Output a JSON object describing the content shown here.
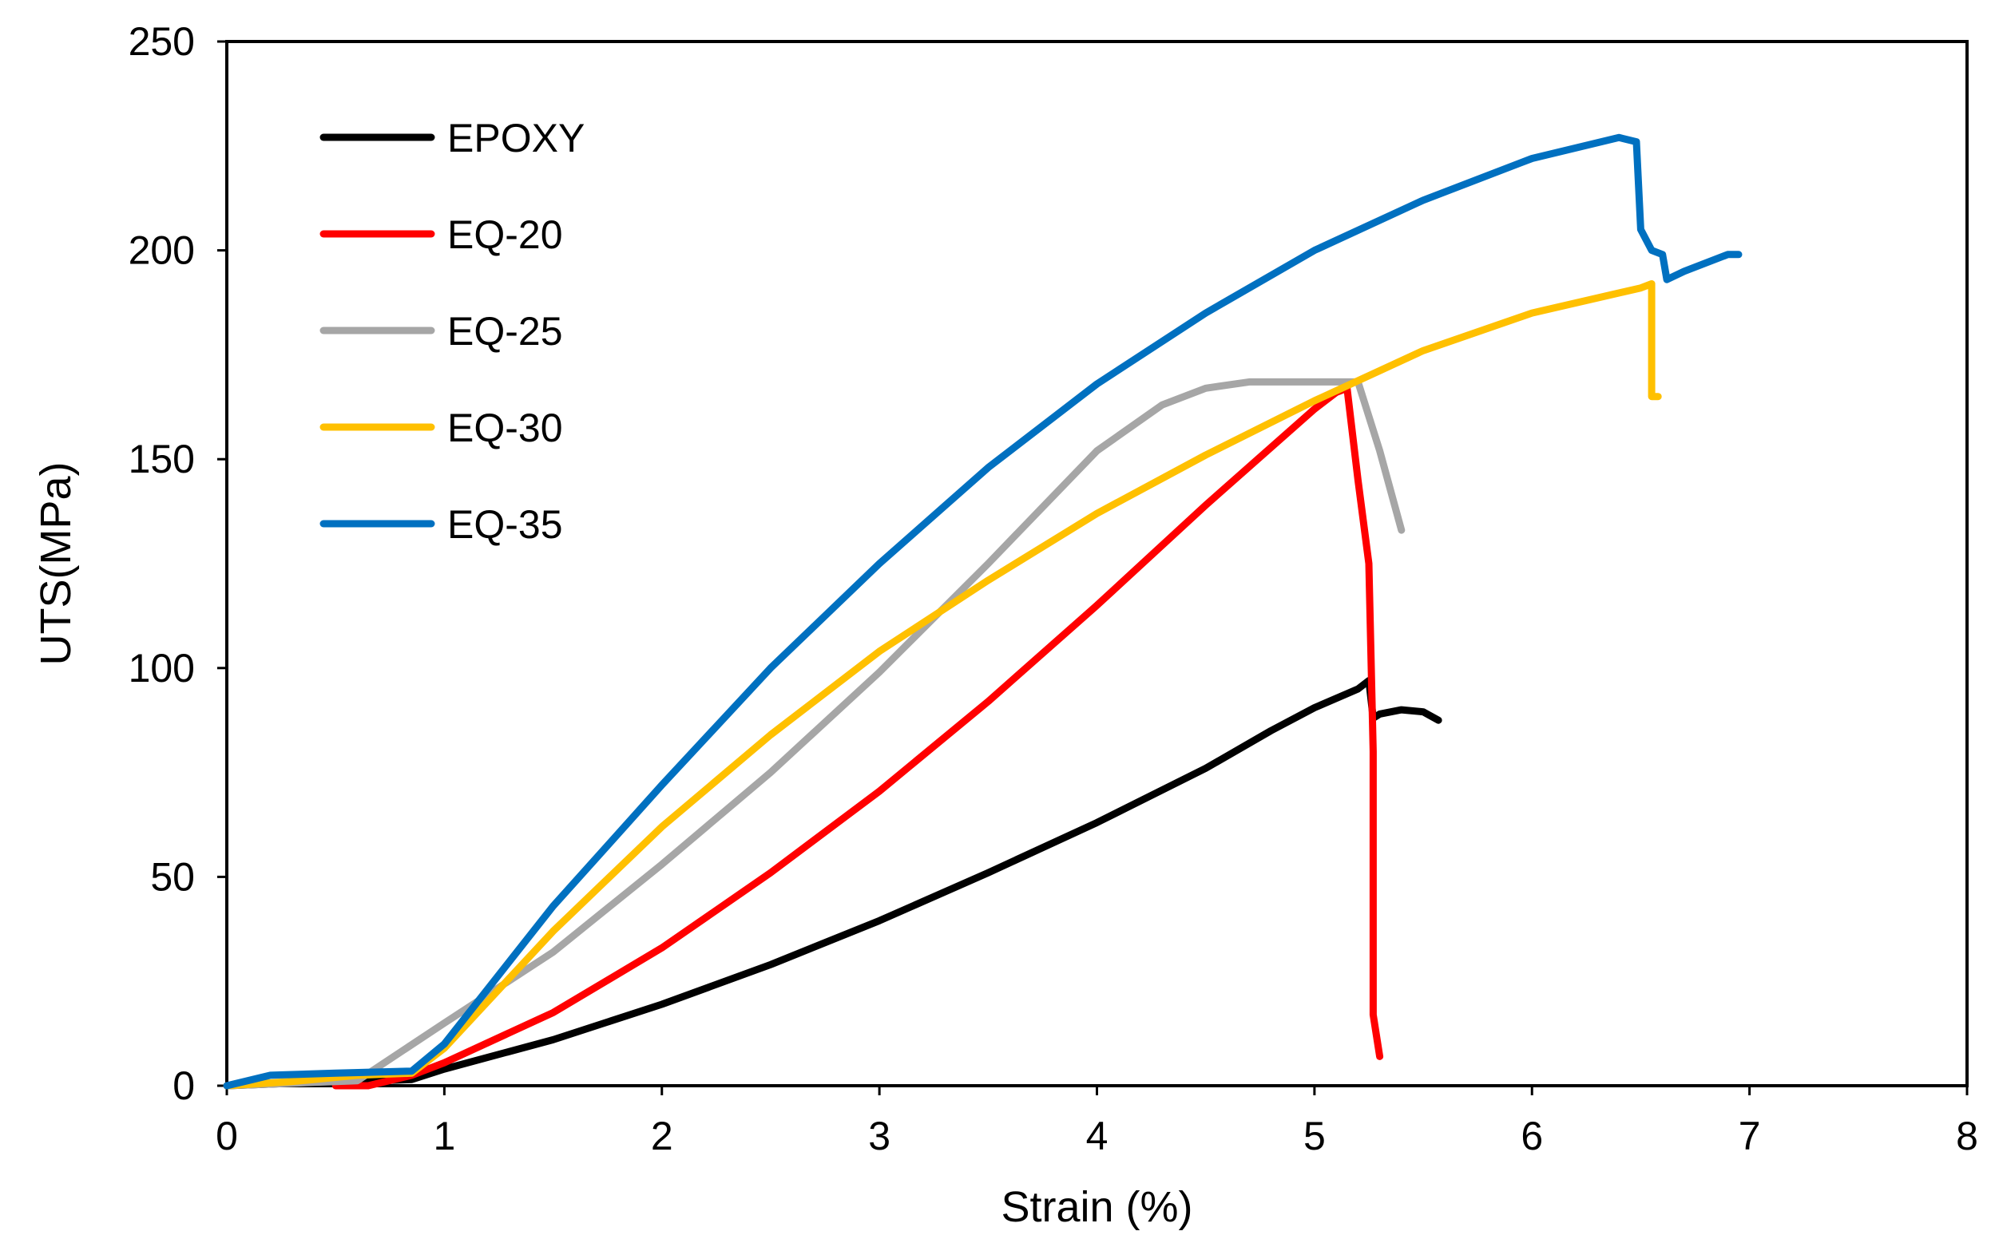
{
  "chart_data": {
    "type": "line",
    "title": "",
    "xlabel": "Strain (%)",
    "ylabel": "UTS(MPa)",
    "xlim": [
      0,
      8
    ],
    "ylim": [
      0,
      250
    ],
    "xticks": [
      0,
      1,
      2,
      3,
      4,
      5,
      6,
      7,
      8
    ],
    "yticks": [
      0,
      50,
      100,
      150,
      200,
      250
    ],
    "grid": false,
    "legend_position": "top-left",
    "series": [
      {
        "name": "EPOXY",
        "color": "#000000",
        "x": [
          0.0,
          0.3,
          0.6,
          0.85,
          1.0,
          1.5,
          2.0,
          2.5,
          3.0,
          3.5,
          4.0,
          4.5,
          4.8,
          5.0,
          5.2,
          5.25,
          5.27,
          5.3,
          5.4,
          5.5,
          5.57
        ],
        "y": [
          0.0,
          0.6,
          1.0,
          1.5,
          4.0,
          11.0,
          19.5,
          29.0,
          39.5,
          51.0,
          63.0,
          76.0,
          85.0,
          90.5,
          95.0,
          97.0,
          88.0,
          89.0,
          90.0,
          89.5,
          87.5
        ]
      },
      {
        "name": "EQ-20",
        "color": "#ff0000",
        "x": [
          0.5,
          0.65,
          0.85,
          1.0,
          1.5,
          2.0,
          2.5,
          3.0,
          3.5,
          4.0,
          4.5,
          5.0,
          5.1,
          5.15,
          5.2,
          5.25,
          5.27,
          5.27,
          5.3
        ],
        "y": [
          0.0,
          0.0,
          2.5,
          5.5,
          17.5,
          33.0,
          51.0,
          70.5,
          92.0,
          115.0,
          139.0,
          162.0,
          166.0,
          167.0,
          145.0,
          125.0,
          80.0,
          17.0,
          7.0
        ]
      },
      {
        "name": "EQ-25",
        "color": "#a6a6a6",
        "x": [
          0.0,
          0.3,
          0.6,
          1.0,
          1.5,
          2.0,
          2.5,
          3.0,
          3.5,
          4.0,
          4.3,
          4.5,
          4.7,
          5.0,
          5.2,
          5.3,
          5.4
        ],
        "y": [
          0.0,
          0.6,
          1.2,
          15.0,
          32.0,
          53.0,
          75.0,
          99.0,
          125.0,
          152.0,
          163.0,
          167.0,
          168.5,
          168.5,
          168.5,
          152.0,
          133.0
        ]
      },
      {
        "name": "EQ-30",
        "color": "#ffc000",
        "x": [
          0.0,
          0.3,
          0.6,
          0.85,
          1.0,
          1.5,
          2.0,
          2.5,
          3.0,
          3.5,
          4.0,
          4.5,
          5.0,
          5.5,
          6.0,
          6.5,
          6.55,
          6.55,
          6.58
        ],
        "y": [
          0.0,
          1.0,
          2.5,
          3.0,
          9.0,
          37.0,
          62.0,
          84.0,
          104.0,
          121.0,
          137.0,
          151.0,
          164.0,
          176.0,
          185.0,
          191.0,
          192.0,
          165.0,
          165.0
        ]
      },
      {
        "name": "EQ-35",
        "color": "#0070c0",
        "x": [
          0.0,
          0.2,
          0.5,
          0.85,
          1.0,
          1.5,
          2.0,
          2.5,
          3.0,
          3.5,
          4.0,
          4.5,
          5.0,
          5.5,
          6.0,
          6.4,
          6.48,
          6.5,
          6.55,
          6.6,
          6.62,
          6.7,
          6.9,
          6.95
        ],
        "y": [
          0.0,
          2.5,
          3.0,
          3.5,
          10.0,
          43.0,
          72.0,
          100.0,
          125.0,
          148.0,
          168.0,
          185.0,
          200.0,
          212.0,
          222.0,
          227.0,
          226.0,
          205.0,
          200.0,
          199.0,
          193.0,
          195.0,
          199.0,
          199.0
        ]
      }
    ]
  }
}
